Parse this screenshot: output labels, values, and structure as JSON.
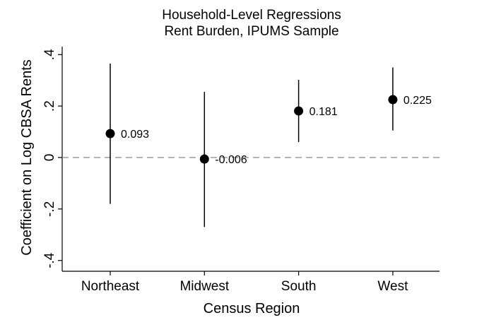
{
  "chart_data": {
    "type": "scatter",
    "title": "Household-Level Regressions",
    "subtitle": "Rent Burden, IPUMS Sample",
    "xlabel": "Census Region",
    "ylabel": "Coefficient on Log CBSA Rents",
    "categories": [
      "Northeast",
      "Midwest",
      "South",
      "West"
    ],
    "values": [
      0.093,
      -0.006,
      0.181,
      0.225
    ],
    "ci_low": [
      -0.18,
      -0.27,
      0.06,
      0.105
    ],
    "ci_high": [
      0.365,
      0.255,
      0.302,
      0.35
    ],
    "data_labels": [
      "0.093",
      "-0.006",
      "0.181",
      "0.225"
    ],
    "yticks": [
      -0.4,
      -0.2,
      0,
      0.2,
      0.4
    ],
    "ytick_labels": [
      "-.4",
      "-.2",
      "0",
      ".2",
      ".4"
    ],
    "ylim": [
      -0.42,
      0.42
    ],
    "reference_line": 0,
    "grid": false,
    "legend": "none",
    "colors": {
      "marker": "#000000",
      "reference_line": "#888888"
    }
  }
}
